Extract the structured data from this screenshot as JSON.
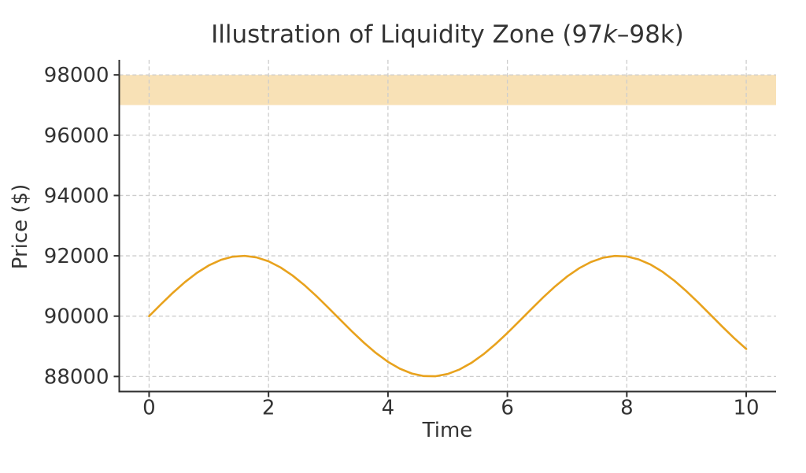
{
  "figure": {
    "background": "#ffffff",
    "text_color": "#333333",
    "spine_color": "#2e2e2e",
    "grid_color": "#cdcdcd"
  },
  "chart_data": {
    "type": "line",
    "title": {
      "full": "Illustration of Liquidity Zone (97k–98k)",
      "pre": "Illustration of Liquidity Zone (97",
      "k_italic": "k",
      "post": "–98k)"
    },
    "xlabel": "Time",
    "ylabel": "Price ($)",
    "xlim": [
      -0.5,
      10.5
    ],
    "ylim": [
      87500,
      98500
    ],
    "x_ticks": [
      0,
      2,
      4,
      6,
      8,
      10
    ],
    "y_ticks": [
      88000,
      90000,
      92000,
      94000,
      96000,
      98000
    ],
    "grid": {
      "style": "dashed",
      "color": "#cdcdcd"
    },
    "band": {
      "name": "liquidity-zone",
      "ymin": 97000,
      "ymax": 98000,
      "color": "#E8A21D",
      "opacity": 0.32
    },
    "series": [
      {
        "name": "price",
        "color": "#E8A21D",
        "linewidth": 2.6,
        "x": [
          0.0,
          0.2,
          0.4,
          0.6,
          0.8,
          1.0,
          1.2,
          1.4,
          1.6,
          1.8,
          2.0,
          2.2,
          2.4,
          2.6,
          2.8,
          3.0,
          3.2,
          3.4,
          3.6,
          3.8,
          4.0,
          4.2,
          4.4,
          4.6,
          4.8,
          5.0,
          5.2,
          5.4,
          5.6,
          5.8,
          6.0,
          6.2,
          6.4,
          6.6,
          6.8,
          7.0,
          7.2,
          7.4,
          7.6,
          7.8,
          8.0,
          8.2,
          8.4,
          8.6,
          8.8,
          9.0,
          9.2,
          9.4,
          9.6,
          9.8,
          10.0
        ],
        "y": [
          90000,
          90397,
          90779,
          91129,
          91435,
          91683,
          91864,
          91971,
          91999,
          91948,
          91819,
          91617,
          91351,
          91031,
          90670,
          90282,
          89883,
          89489,
          89115,
          88776,
          88486,
          88257,
          88097,
          88013,
          88008,
          88082,
          88233,
          88454,
          88737,
          89071,
          89441,
          89834,
          90233,
          90623,
          90988,
          91314,
          91587,
          91797,
          91936,
          91997,
          91979,
          91881,
          91709,
          91469,
          91170,
          90824,
          90446,
          90050,
          89651,
          89267,
          88912
        ]
      }
    ]
  }
}
